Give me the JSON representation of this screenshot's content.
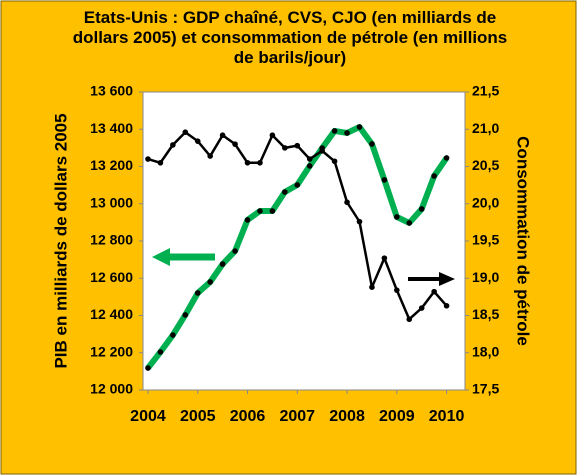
{
  "chart_data": {
    "type": "line",
    "title": "Etats-Unis : GDP chaîné, CVS, CJO (en milliards de dollars 2005) et consommation de pétrole (en millions de barils/jour)",
    "y_label": "PIB en milliards de dollars 2005",
    "y2_label": "Consommation de pétrole",
    "x": [
      2004,
      2004.25,
      2004.5,
      2004.75,
      2005,
      2005.25,
      2005.5,
      2005.75,
      2006,
      2006.25,
      2006.5,
      2006.75,
      2007,
      2007.25,
      2007.5,
      2007.75,
      2008,
      2008.25,
      2008.5,
      2008.75,
      2009,
      2009.25,
      2009.5,
      2009.75,
      2010
    ],
    "series": [
      {
        "color": "#00b050",
        "values": [
          12118,
          12204,
          12295,
          12403,
          12521,
          12580,
          12676,
          12746,
          12913,
          12961,
          12961,
          13063,
          13101,
          13203,
          13299,
          13391,
          13380,
          13412,
          13321,
          13128,
          12929,
          12897,
          12972,
          13149,
          13246
        ]
      },
      {
        "color": "#000000",
        "axis": "y2",
        "values": [
          20.6,
          20.55,
          20.79,
          20.96,
          20.84,
          20.64,
          20.92,
          20.8,
          20.55,
          20.55,
          20.92,
          20.75,
          20.78,
          20.6,
          20.71,
          20.57,
          20.02,
          19.76,
          18.88,
          19.27,
          18.84,
          18.45,
          18.6,
          18.82,
          18.63
        ]
      }
    ],
    "xlim": [
      2003.9,
      2010.37
    ],
    "xticks": [
      2004,
      2005,
      2006,
      2007,
      2008,
      2009,
      2010
    ],
    "ylim": [
      12000,
      13600
    ],
    "yticks": [
      {
        "value": 12000,
        "label": "12 000"
      },
      {
        "value": 12200,
        "label": "12 200"
      },
      {
        "value": 12400,
        "label": "12 400"
      },
      {
        "value": 12600,
        "label": "12 600"
      },
      {
        "value": 12800,
        "label": "12 800"
      },
      {
        "value": 13000,
        "label": "13 000"
      },
      {
        "value": 13200,
        "label": "13 200"
      },
      {
        "value": 13400,
        "label": "13 400"
      },
      {
        "value": 13600,
        "label": "13 600"
      }
    ],
    "y2lim": [
      17.5,
      21.5
    ],
    "y2ticks": [
      {
        "value": 17.5,
        "label": "17,5"
      },
      {
        "value": 18,
        "label": "18,0"
      },
      {
        "value": 18.5,
        "label": "18,5"
      },
      {
        "value": 19,
        "label": "19,0"
      },
      {
        "value": 19.5,
        "label": "19,5"
      },
      {
        "value": 20,
        "label": "20,0"
      },
      {
        "value": 20.5,
        "label": "20,5"
      },
      {
        "value": 21,
        "label": "21,0"
      },
      {
        "value": 21.5,
        "label": "21,5"
      }
    ],
    "grid": false
  }
}
